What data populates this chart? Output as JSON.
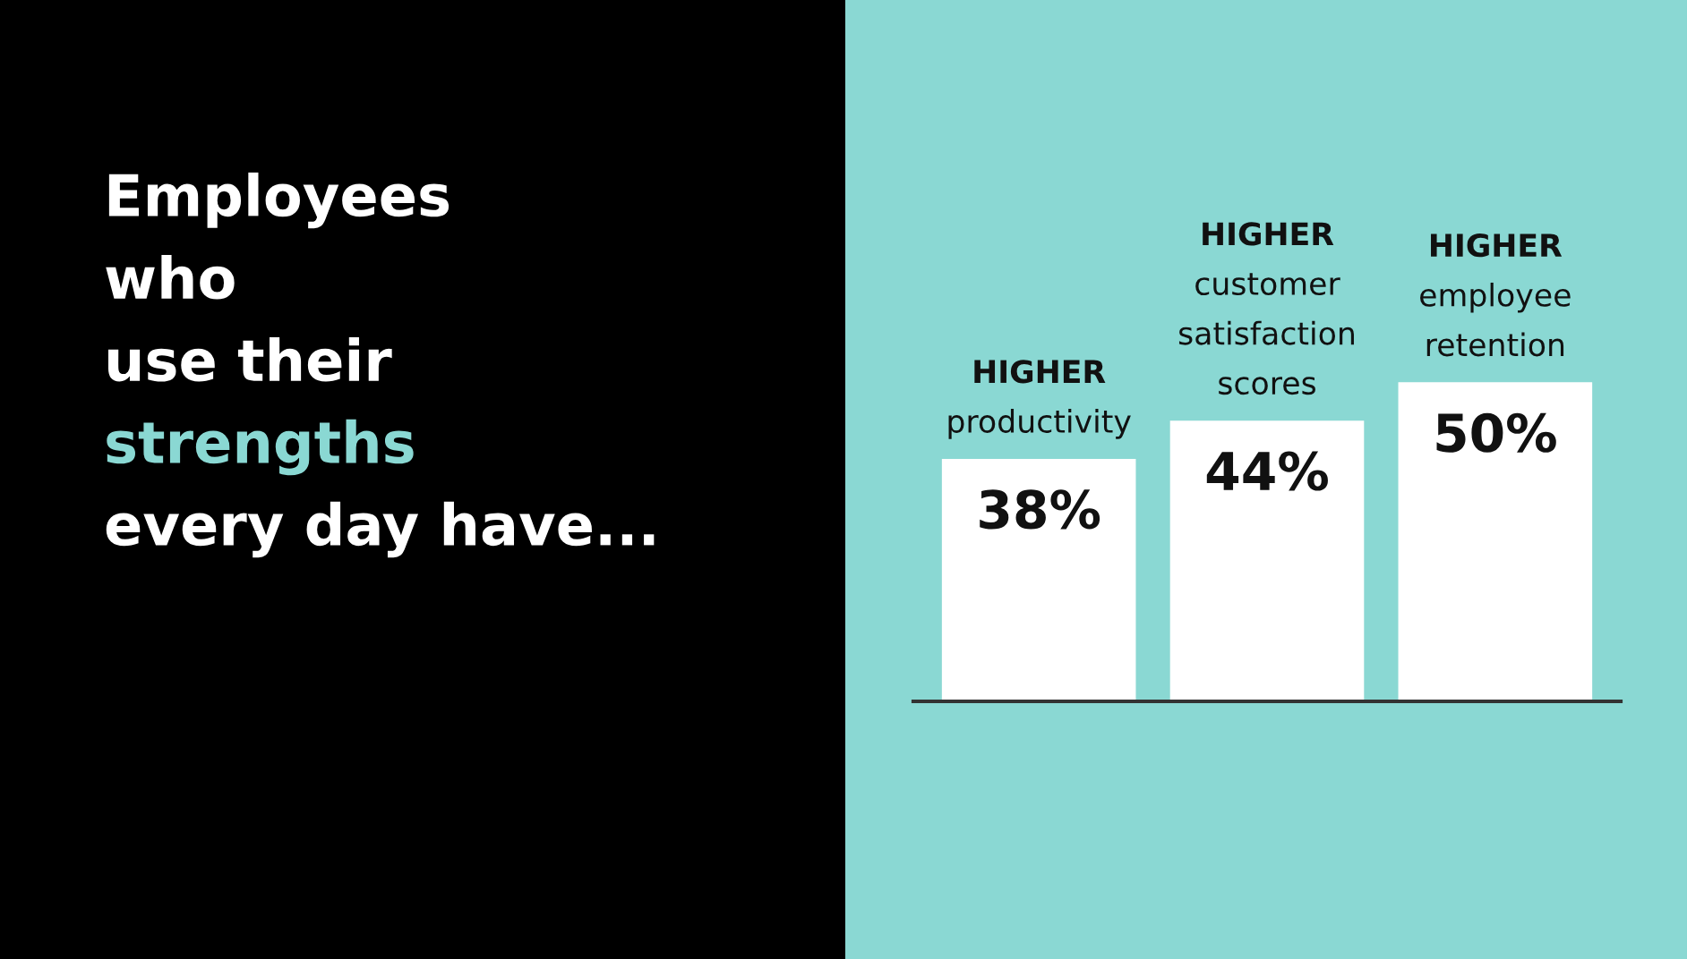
{
  "chart_data": {
    "type": "bar",
    "title": "Employees\nwho\nuse their\nstrengths\nevery day have...",
    "categories": [
      "HIGHER\nproductivity",
      "HIGHER\ncustomer\nsatisfaction\nscores",
      "HIGHER\nemployee\nretention"
    ],
    "values": [
      38,
      44,
      50
    ],
    "value_labels": [
      "38%",
      "44%",
      "50%"
    ],
    "color": "#ffffff"
  }
}
